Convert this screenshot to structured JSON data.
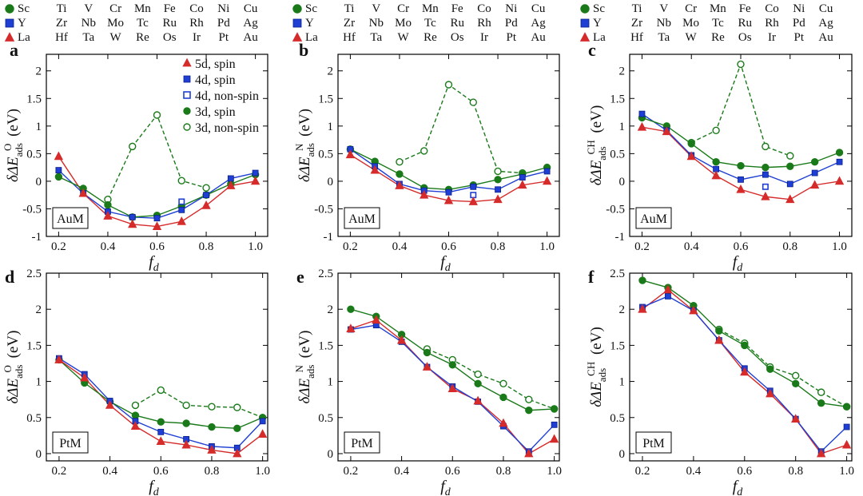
{
  "header_table": {
    "row_labels": [
      "Sc",
      "Y",
      "La"
    ],
    "row_colors": [
      "#1a7a1a",
      "#1f3fd4",
      "#d62b2b"
    ],
    "row_markers": [
      "circle",
      "square",
      "triangle"
    ],
    "columns": [
      [
        "Ti",
        "Zr",
        "Hf"
      ],
      [
        "V",
        "Nb",
        "Ta"
      ],
      [
        "Cr",
        "Mo",
        "W"
      ],
      [
        "Mn",
        "Tc",
        "Re"
      ],
      [
        "Fe",
        "Ru",
        "Os"
      ],
      [
        "Co",
        "Rh",
        "Ir"
      ],
      [
        "Ni",
        "Pd",
        "Pt"
      ],
      [
        "Cu",
        "Ag",
        "Au"
      ]
    ]
  },
  "legend": [
    {
      "label": "5d, spin",
      "color": "#d62b2b",
      "marker": "triangle",
      "fill": true
    },
    {
      "label": "4d, spin",
      "color": "#1f3fd4",
      "marker": "square",
      "fill": true
    },
    {
      "label": "4d, non-spin",
      "color": "#1f3fd4",
      "marker": "square",
      "fill": false
    },
    {
      "label": "3d, spin",
      "color": "#1a7a1a",
      "marker": "circle",
      "fill": true
    },
    {
      "label": "3d, non-spin",
      "color": "#1a7a1a",
      "marker": "circle",
      "fill": false
    }
  ],
  "xlabel": {
    "main": "f",
    "sub": "d"
  },
  "chart_data": [
    {
      "panel": "a",
      "type": "line",
      "label": "AuM",
      "ylabel_sup": "O",
      "xlim": [
        0.15,
        1.05
      ],
      "ylim": [
        -1,
        2.3
      ],
      "xticks": [
        "0.2",
        "0.4",
        "0.6",
        "0.8",
        "1.0"
      ],
      "yticks": [
        "-1",
        "-0.5",
        "0",
        "0.5",
        "1",
        "1.5",
        "2"
      ],
      "x": [
        0.2,
        0.3,
        0.4,
        0.5,
        0.6,
        0.7,
        0.8,
        0.9,
        1.0
      ],
      "series": [
        {
          "name": "5d, spin",
          "values": [
            0.45,
            -0.22,
            -0.63,
            -0.78,
            -0.82,
            -0.73,
            -0.44,
            -0.08,
            0.0
          ]
        },
        {
          "name": "4d, spin",
          "values": [
            0.2,
            -0.22,
            -0.55,
            -0.65,
            -0.67,
            -0.52,
            -0.25,
            0.05,
            0.15
          ]
        },
        {
          "name": "4d, non-spin",
          "values": [
            null,
            null,
            null,
            null,
            null,
            -0.37,
            null,
            null,
            null
          ]
        },
        {
          "name": "3d, spin",
          "values": [
            0.08,
            -0.13,
            -0.43,
            -0.65,
            -0.62,
            -0.45,
            -0.25,
            -0.05,
            0.12
          ]
        },
        {
          "name": "3d, non-spin",
          "values": [
            null,
            null,
            -0.33,
            0.63,
            1.2,
            0.01,
            -0.12,
            null,
            null
          ]
        }
      ]
    },
    {
      "panel": "b",
      "type": "line",
      "label": "AuM",
      "ylabel_sup": "N",
      "xlim": [
        0.15,
        1.05
      ],
      "ylim": [
        -1,
        2.3
      ],
      "xticks": [
        "0.2",
        "0.4",
        "0.6",
        "0.8",
        "1.0"
      ],
      "yticks": [
        "-1",
        "-0.5",
        "0",
        "0.5",
        "1",
        "1.5",
        "2"
      ],
      "x": [
        0.2,
        0.3,
        0.4,
        0.5,
        0.6,
        0.7,
        0.8,
        0.9,
        1.0
      ],
      "series": [
        {
          "name": "5d, spin",
          "values": [
            0.48,
            0.2,
            -0.08,
            -0.25,
            -0.35,
            -0.37,
            -0.33,
            -0.07,
            0.0
          ]
        },
        {
          "name": "4d, spin",
          "values": [
            0.58,
            0.27,
            -0.05,
            -0.17,
            -0.2,
            -0.1,
            -0.15,
            0.07,
            0.18
          ]
        },
        {
          "name": "4d, non-spin",
          "values": [
            null,
            null,
            null,
            null,
            null,
            -0.25,
            null,
            null,
            null
          ]
        },
        {
          "name": "3d, spin",
          "values": [
            0.58,
            0.36,
            0.13,
            -0.12,
            -0.15,
            -0.07,
            0.03,
            0.13,
            0.25
          ]
        },
        {
          "name": "3d, non-spin",
          "values": [
            null,
            null,
            0.35,
            0.55,
            1.75,
            1.43,
            0.18,
            0.15,
            null
          ]
        }
      ]
    },
    {
      "panel": "c",
      "type": "line",
      "label": "AuM",
      "ylabel_sup": "CH",
      "xlim": [
        0.15,
        1.05
      ],
      "ylim": [
        -1,
        2.3
      ],
      "xticks": [
        "0.2",
        "0.4",
        "0.6",
        "0.8",
        "1.0"
      ],
      "yticks": [
        "-1",
        "-0.5",
        "0",
        "0.5",
        "1",
        "1.5",
        "2"
      ],
      "x": [
        0.2,
        0.3,
        0.4,
        0.5,
        0.6,
        0.7,
        0.8,
        0.9,
        1.0
      ],
      "series": [
        {
          "name": "5d, spin",
          "values": [
            0.98,
            0.9,
            0.45,
            0.1,
            -0.15,
            -0.28,
            -0.33,
            -0.07,
            0.0
          ]
        },
        {
          "name": "4d, spin",
          "values": [
            1.22,
            0.92,
            0.47,
            0.22,
            0.03,
            0.12,
            -0.05,
            0.15,
            0.35
          ]
        },
        {
          "name": "4d, non-spin",
          "values": [
            null,
            null,
            null,
            null,
            null,
            -0.1,
            null,
            null,
            null
          ]
        },
        {
          "name": "3d, spin",
          "values": [
            1.15,
            1.0,
            0.68,
            0.35,
            0.28,
            0.25,
            0.27,
            0.35,
            0.52
          ]
        },
        {
          "name": "3d, non-spin",
          "values": [
            null,
            null,
            0.7,
            0.92,
            2.12,
            0.63,
            0.46,
            null,
            null
          ]
        }
      ]
    },
    {
      "panel": "d",
      "type": "line",
      "label": "PtM",
      "ylabel_sup": "O",
      "xlim": [
        0.15,
        1.02
      ],
      "ylim": [
        -0.1,
        2.5
      ],
      "xticks": [
        "0.2",
        "0.4",
        "0.6",
        "0.8",
        "1.0"
      ],
      "yticks": [
        "0",
        "0.5",
        "1",
        "1.5",
        "2",
        "2.5"
      ],
      "x": [
        0.2,
        0.3,
        0.4,
        0.5,
        0.6,
        0.7,
        0.8,
        0.9,
        1.0
      ],
      "series": [
        {
          "name": "5d, spin",
          "values": [
            1.3,
            1.05,
            0.67,
            0.38,
            0.17,
            0.12,
            0.05,
            0.0,
            0.27
          ]
        },
        {
          "name": "4d, spin",
          "values": [
            1.32,
            1.1,
            0.73,
            0.45,
            0.3,
            0.2,
            0.1,
            0.08,
            0.45
          ]
        },
        {
          "name": "4d, non-spin",
          "values": [
            null,
            null,
            null,
            null,
            null,
            null,
            null,
            null,
            null
          ]
        },
        {
          "name": "3d, spin",
          "values": [
            1.3,
            0.98,
            0.72,
            0.53,
            0.44,
            0.42,
            0.37,
            0.35,
            0.5
          ]
        },
        {
          "name": "3d, non-spin",
          "values": [
            null,
            null,
            null,
            0.67,
            0.88,
            0.67,
            0.65,
            0.64,
            0.5
          ]
        }
      ]
    },
    {
      "panel": "e",
      "type": "line",
      "label": "PtM",
      "ylabel_sup": "N",
      "xlim": [
        0.15,
        1.02
      ],
      "ylim": [
        -0.1,
        2.5
      ],
      "xticks": [
        "0.2",
        "0.4",
        "0.6",
        "0.8",
        "1.0"
      ],
      "yticks": [
        "0",
        "0.5",
        "1",
        "1.5",
        "2",
        "2.5"
      ],
      "x": [
        0.2,
        0.3,
        0.4,
        0.5,
        0.6,
        0.7,
        0.8,
        0.9,
        1.0
      ],
      "series": [
        {
          "name": "5d, spin",
          "values": [
            1.73,
            1.85,
            1.57,
            1.2,
            0.9,
            0.73,
            0.42,
            0.0,
            0.2
          ]
        },
        {
          "name": "4d, spin",
          "values": [
            1.72,
            1.78,
            1.55,
            1.2,
            0.93,
            0.72,
            0.38,
            0.03,
            0.4
          ]
        },
        {
          "name": "4d, non-spin",
          "values": [
            null,
            null,
            null,
            null,
            null,
            null,
            null,
            null,
            null
          ]
        },
        {
          "name": "3d, spin",
          "values": [
            2.0,
            1.9,
            1.65,
            1.4,
            1.23,
            0.97,
            0.78,
            0.6,
            0.62
          ]
        },
        {
          "name": "3d, non-spin",
          "values": [
            null,
            null,
            null,
            1.45,
            1.3,
            1.1,
            0.97,
            0.75,
            0.62
          ]
        }
      ]
    },
    {
      "panel": "f",
      "type": "line",
      "label": "PtM",
      "ylabel_sup": "CH",
      "xlim": [
        0.15,
        1.02
      ],
      "ylim": [
        -0.1,
        2.5
      ],
      "xticks": [
        "0.2",
        "0.4",
        "0.6",
        "0.8",
        "1.0"
      ],
      "yticks": [
        "0",
        "0.5",
        "1",
        "1.5",
        "2",
        "2.5"
      ],
      "x": [
        0.2,
        0.3,
        0.4,
        0.5,
        0.6,
        0.7,
        0.8,
        0.9,
        1.0
      ],
      "series": [
        {
          "name": "5d, spin",
          "values": [
            2.0,
            2.27,
            1.98,
            1.57,
            1.13,
            0.83,
            0.48,
            0.0,
            0.12
          ]
        },
        {
          "name": "4d, spin",
          "values": [
            2.03,
            2.18,
            1.98,
            1.57,
            1.18,
            0.87,
            0.48,
            0.03,
            0.37
          ]
        },
        {
          "name": "4d, non-spin",
          "values": [
            null,
            null,
            null,
            null,
            null,
            null,
            null,
            null,
            null
          ]
        },
        {
          "name": "3d, spin",
          "values": [
            2.4,
            2.3,
            2.05,
            1.7,
            1.5,
            1.17,
            0.97,
            0.7,
            0.65
          ]
        },
        {
          "name": "3d, non-spin",
          "values": [
            null,
            null,
            null,
            1.72,
            1.53,
            1.2,
            1.08,
            0.85,
            0.65
          ]
        }
      ]
    }
  ]
}
